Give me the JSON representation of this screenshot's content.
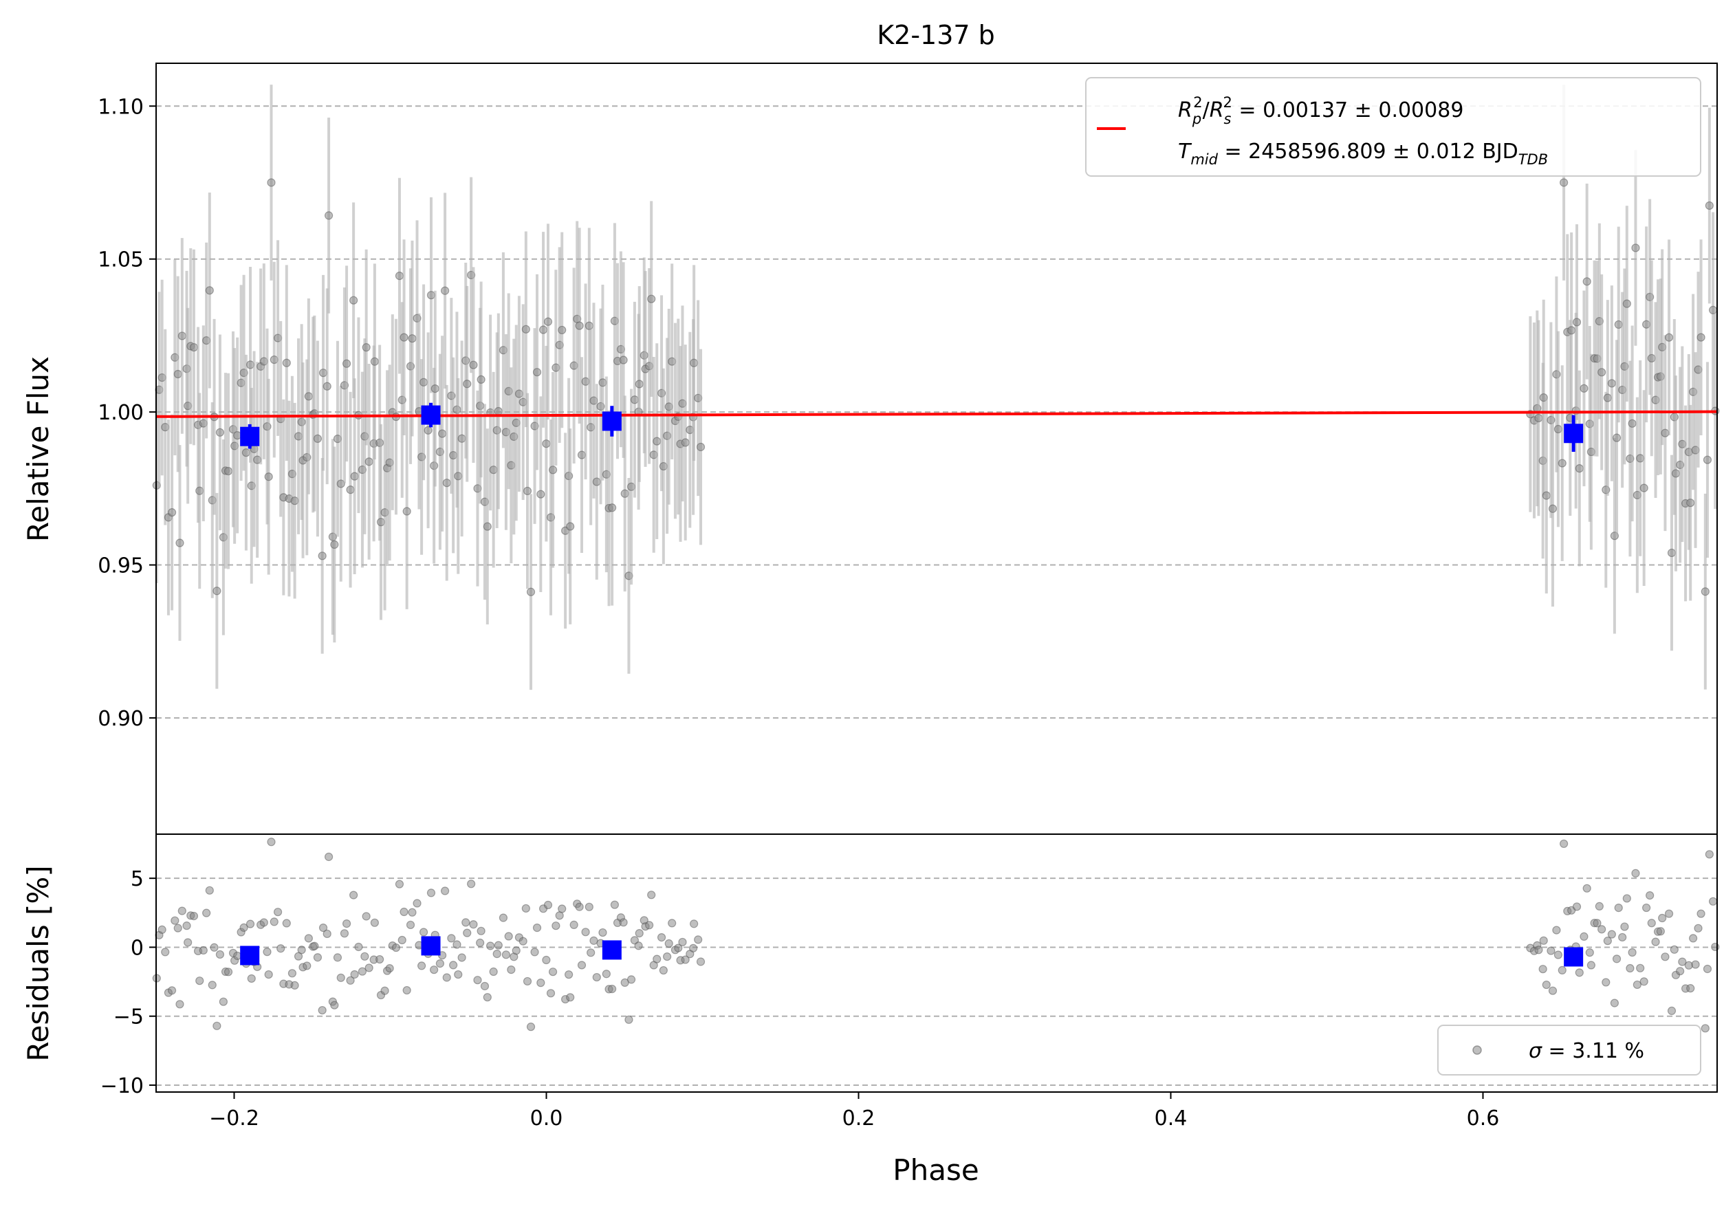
{
  "chart_data": {
    "type": "scatter",
    "title": "K2-137 b",
    "xlabel": "Phase",
    "grid": "y-dashed",
    "panels": [
      {
        "name": "flux",
        "ylabel": "Relative Flux",
        "xlim": [
          -0.25,
          0.75
        ],
        "ylim": [
          0.862,
          1.114
        ],
        "yticks": [
          "0.90",
          "0.95",
          "1.00",
          "1.05",
          "1.10"
        ],
        "yticks_values": [
          0.9,
          0.95,
          1.0,
          1.05,
          1.1
        ],
        "legend": {
          "placement": "top-right",
          "line1": "R_p^2/R_s^2 = 0.00137 ± 0.00089",
          "line1_parts": {
            "R": "R",
            "p": "p",
            "two": "2",
            "sep": "/",
            "Rs": "R",
            "s": "s",
            "value": " = 0.00137 ± 0.00089"
          },
          "line2_parts": {
            "T": "T",
            "mid": "mid",
            "value": " = 2458596.809 ± 0.012 BJD",
            "tdb": "TDB"
          }
        },
        "model": {
          "color": "#ff0000",
          "x": [
            -0.25,
            0.75
          ],
          "y": [
            0.9985,
            1.0001
          ]
        },
        "binned": {
          "color": "#0000ff",
          "x": [
            -0.19,
            -0.074,
            0.042,
            0.658
          ],
          "y": [
            0.992,
            0.999,
            0.997,
            0.993
          ],
          "err": [
            0.004,
            0.004,
            0.005,
            0.006
          ]
        },
        "points": {
          "color": "#808080",
          "error": 0.032,
          "groups": [
            {
              "x_range": [
                -0.25,
                0.1
              ],
              "n": 190,
              "y_center": 0.997,
              "y_spread": 0.022,
              "seed": 11
            },
            {
              "x_range": [
                0.63,
                0.75
              ],
              "n": 68,
              "y_center": 1.004,
              "y_spread": 0.024,
              "seed": 29
            }
          ]
        }
      },
      {
        "name": "residuals",
        "ylabel": "Residuals [%]",
        "xlim": [
          -0.25,
          0.75
        ],
        "ylim": [
          -10.5,
          8.2
        ],
        "yticks": [
          "−10",
          "−5",
          "0",
          "5"
        ],
        "yticks_values": [
          -10,
          -5,
          0,
          5
        ],
        "legend": {
          "placement": "bottom-right",
          "sigma": "σ",
          "value": " = 3.11 %"
        },
        "binned": {
          "color": "#0000ff",
          "x": [
            -0.19,
            -0.074,
            0.042,
            0.658
          ],
          "y": [
            -0.6,
            0.1,
            -0.2,
            -0.7
          ]
        }
      }
    ],
    "xticks": [
      "−0.2",
      "0.0",
      "0.2",
      "0.4",
      "0.6"
    ],
    "xticks_values": [
      -0.2,
      0.0,
      0.2,
      0.4,
      0.6
    ]
  }
}
